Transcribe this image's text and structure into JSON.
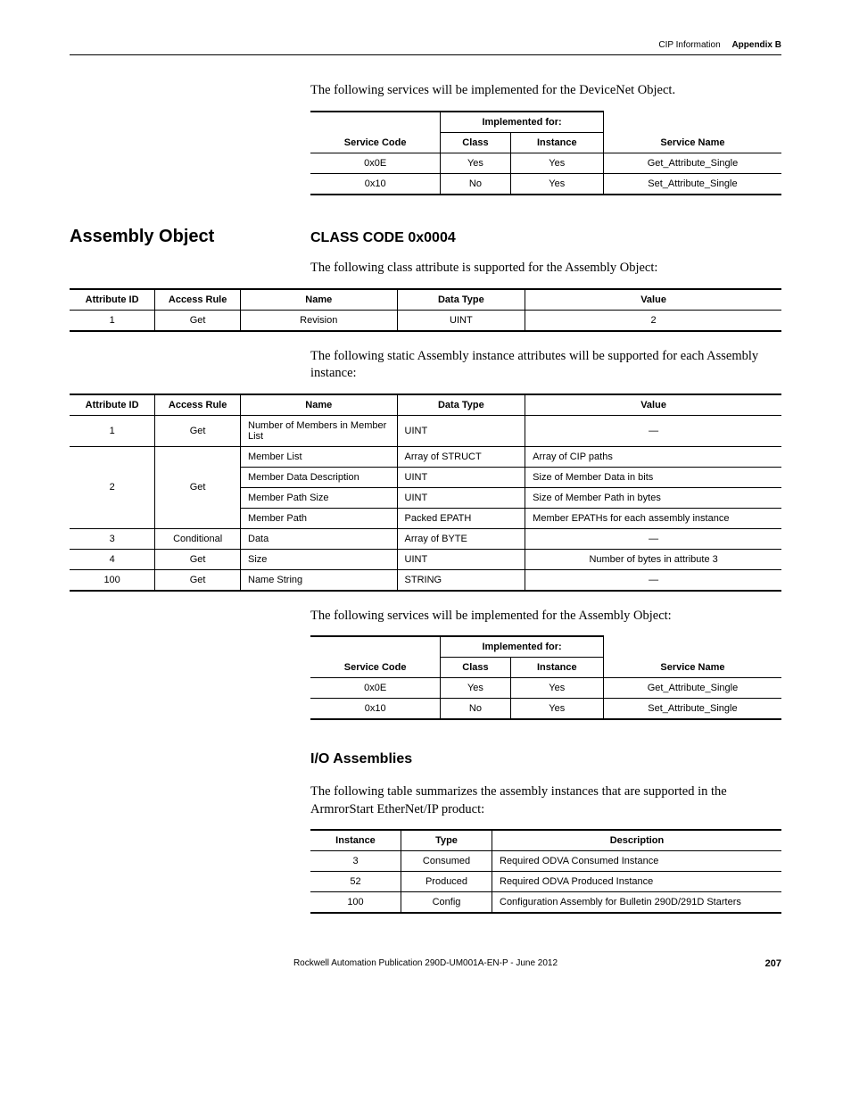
{
  "header": {
    "left": "CIP Information",
    "right": "Appendix B"
  },
  "intro1": "The following services will be implemented for the DeviceNet Object.",
  "table1": {
    "headers": {
      "span": "Implemented for:",
      "c1": "Service Code",
      "c2": "Class",
      "c3": "Instance",
      "c4": "Service Name"
    },
    "rows": [
      [
        "0x0E",
        "Yes",
        "Yes",
        "Get_Attribute_Single"
      ],
      [
        "0x10",
        "No",
        "Yes",
        "Set_Attribute_Single"
      ]
    ]
  },
  "section1": {
    "heading": "Assembly Object",
    "sub": "CLASS CODE 0x0004"
  },
  "intro2": "The following class attribute is supported for the Assembly Object:",
  "table2": {
    "headers": [
      "Attribute ID",
      "Access Rule",
      "Name",
      "Data Type",
      "Value"
    ],
    "rows": [
      [
        "1",
        "Get",
        "Revision",
        "UINT",
        "2"
      ]
    ]
  },
  "intro3": "The following static Assembly instance attributes will be supported for each Assembly instance:",
  "table3": {
    "headers": [
      "Attribute ID",
      "Access Rule",
      "Name",
      "Data Type",
      "Value"
    ],
    "rows": [
      {
        "id": "1",
        "access": "Get",
        "name": "Number of Members in Member List",
        "type": "UINT",
        "value": "—"
      },
      {
        "id": "2",
        "access": "Get",
        "sub": [
          {
            "name": "Member List",
            "type": "Array of STRUCT",
            "value": "Array of CIP paths"
          },
          {
            "name": "Member Data Description",
            "type": "UINT",
            "value": "Size of Member Data in bits"
          },
          {
            "name": "Member Path Size",
            "type": "UINT",
            "value": "Size of Member Path in bytes"
          },
          {
            "name": "Member Path",
            "type": "Packed EPATH",
            "value": "Member EPATHs for each assembly instance"
          }
        ]
      },
      {
        "id": "3",
        "access": "Conditional",
        "name": "Data",
        "type": "Array of BYTE",
        "value": "—"
      },
      {
        "id": "4",
        "access": "Get",
        "name": "Size",
        "type": "UINT",
        "value": "Number of bytes in attribute 3"
      },
      {
        "id": "100",
        "access": "Get",
        "name": "Name String",
        "type": "STRING",
        "value": "—"
      }
    ]
  },
  "intro4": "The following services will be implemented for the Assembly Object:",
  "table4": {
    "headers": {
      "span": "Implemented for:",
      "c1": "Service Code",
      "c2": "Class",
      "c3": "Instance",
      "c4": "Service Name"
    },
    "rows": [
      [
        "0x0E",
        "Yes",
        "Yes",
        "Get_Attribute_Single"
      ],
      [
        "0x10",
        "No",
        "Yes",
        "Set_Attribute_Single"
      ]
    ]
  },
  "sub2": "I/O Assemblies",
  "intro5": "The following table summarizes the assembly instances that are supported in the ArmrorStart EtherNet/IP product:",
  "table5": {
    "headers": [
      "Instance",
      "Type",
      "Description"
    ],
    "rows": [
      [
        "3",
        "Consumed",
        "Required ODVA Consumed Instance"
      ],
      [
        "52",
        "Produced",
        "Required ODVA Produced Instance"
      ],
      [
        "100",
        "Config",
        "Configuration Assembly for Bulletin 290D/291D Starters"
      ]
    ],
    "widths": [
      "85px",
      "85px",
      "auto"
    ]
  },
  "footer": {
    "pub": "Rockwell Automation Publication 290D-UM001A-EN-P - June 2012",
    "page": "207"
  }
}
